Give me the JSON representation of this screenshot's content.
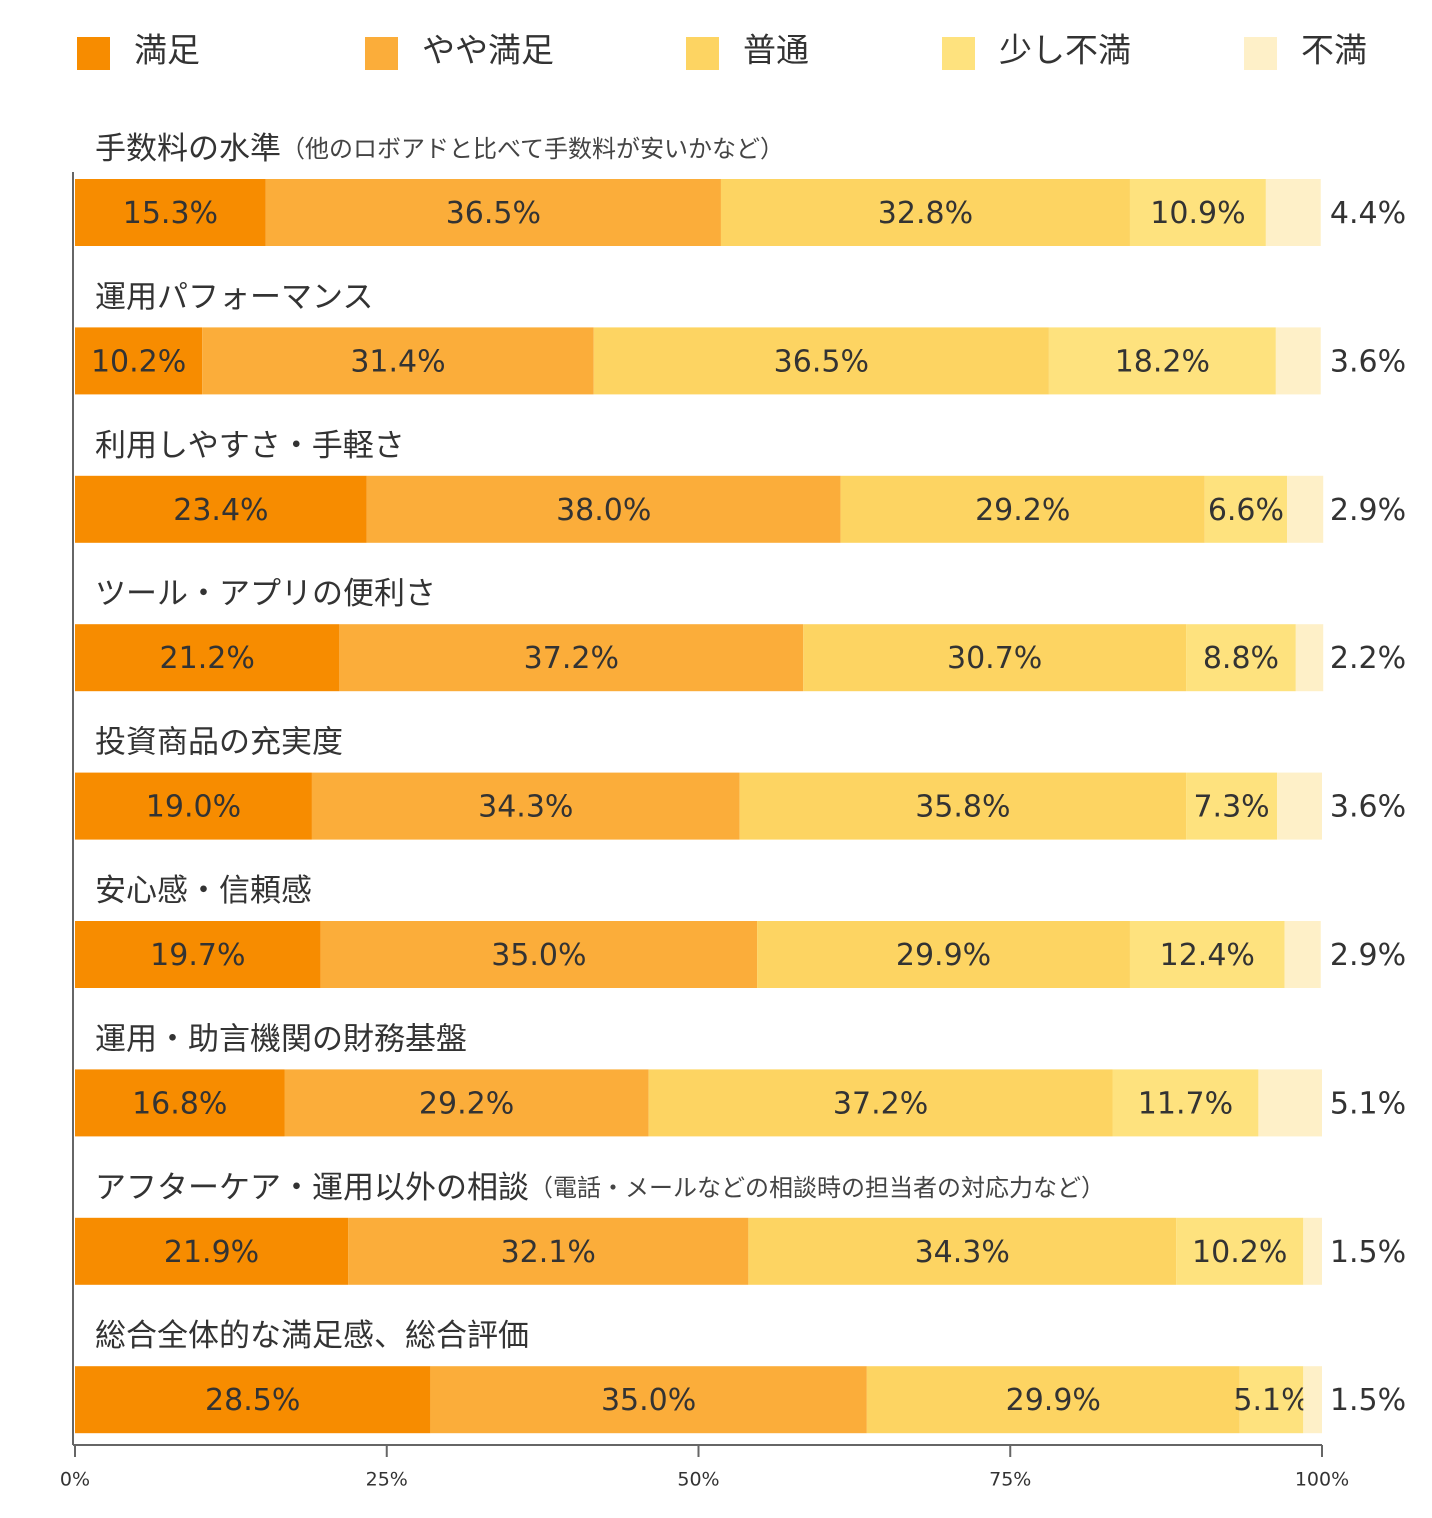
{
  "chart_data": {
    "type": "stacked-bar-horizontal",
    "legend": "top",
    "categories": [
      "手数料の水準",
      "運用パフォーマンス",
      "利用しやすさ・手軽さ",
      "ツール・アプリの便利さ",
      "投資商品の充実度",
      "安心感・信頼感",
      "運用・助言機関の財務基盤",
      "アフターケア・運用以外の相談",
      "総合全体的な満足感、総合評価"
    ],
    "category_notes": [
      "（他のロボアドと比べて手数料が安いかなど）",
      null,
      null,
      null,
      null,
      null,
      null,
      "（電話・メールなどの相談時の担当者の対応力など）",
      null
    ],
    "series": [
      {
        "name": "満足",
        "color": "#f78c00",
        "values": [
          15.3,
          10.2,
          23.4,
          21.2,
          19.0,
          19.7,
          16.8,
          21.9,
          28.5
        ],
        "value_labels": [
          "15.3%",
          "10.2%",
          "23.4%",
          "21.2%",
          "19.0%",
          "19.7%",
          "16.8%",
          "21.9%",
          "28.5%"
        ]
      },
      {
        "name": "やや満足",
        "color": "#fbad3a",
        "values": [
          36.5,
          31.4,
          38.0,
          37.2,
          34.3,
          35.0,
          29.2,
          32.1,
          35.0
        ],
        "value_labels": [
          "36.5%",
          "31.4%",
          "38.0%",
          "37.2%",
          "34.3%",
          "35.0%",
          "29.2%",
          "32.1%",
          "35.0%"
        ]
      },
      {
        "name": "普通",
        "color": "#fdd462",
        "values": [
          32.8,
          36.5,
          29.2,
          30.7,
          35.8,
          29.9,
          37.2,
          34.3,
          29.9
        ],
        "value_labels": [
          "32.8%",
          "36.5%",
          "29.2%",
          "30.7%",
          "35.8%",
          "29.9%",
          "37.2%",
          "34.3%",
          "29.9%"
        ]
      },
      {
        "name": "少し不満",
        "color": "#fee27e",
        "values": [
          10.9,
          18.2,
          6.6,
          8.8,
          7.3,
          12.4,
          11.7,
          10.2,
          5.1
        ],
        "value_labels": [
          "10.9%",
          "18.2%",
          "6.6%",
          "8.8%",
          "7.3%",
          "12.4%",
          "11.7%",
          "10.2%",
          "5.1%"
        ]
      },
      {
        "name": "不満",
        "color": "#fef0c8",
        "values": [
          4.4,
          3.6,
          2.9,
          2.2,
          3.6,
          2.9,
          5.1,
          1.5,
          1.5
        ],
        "value_labels": [
          "4.4%",
          "3.6%",
          "2.9%",
          "2.2%",
          "3.6%",
          "2.9%",
          "5.1%",
          "1.5%",
          "1.5%"
        ]
      }
    ],
    "xlim": [
      0,
      100
    ],
    "xticks": [
      {
        "value": 0,
        "label": "0%"
      },
      {
        "value": 25,
        "label": "25%"
      },
      {
        "value": 50,
        "label": "50%"
      },
      {
        "value": 75,
        "label": "75%"
      },
      {
        "value": 100,
        "label": "100%"
      }
    ]
  }
}
